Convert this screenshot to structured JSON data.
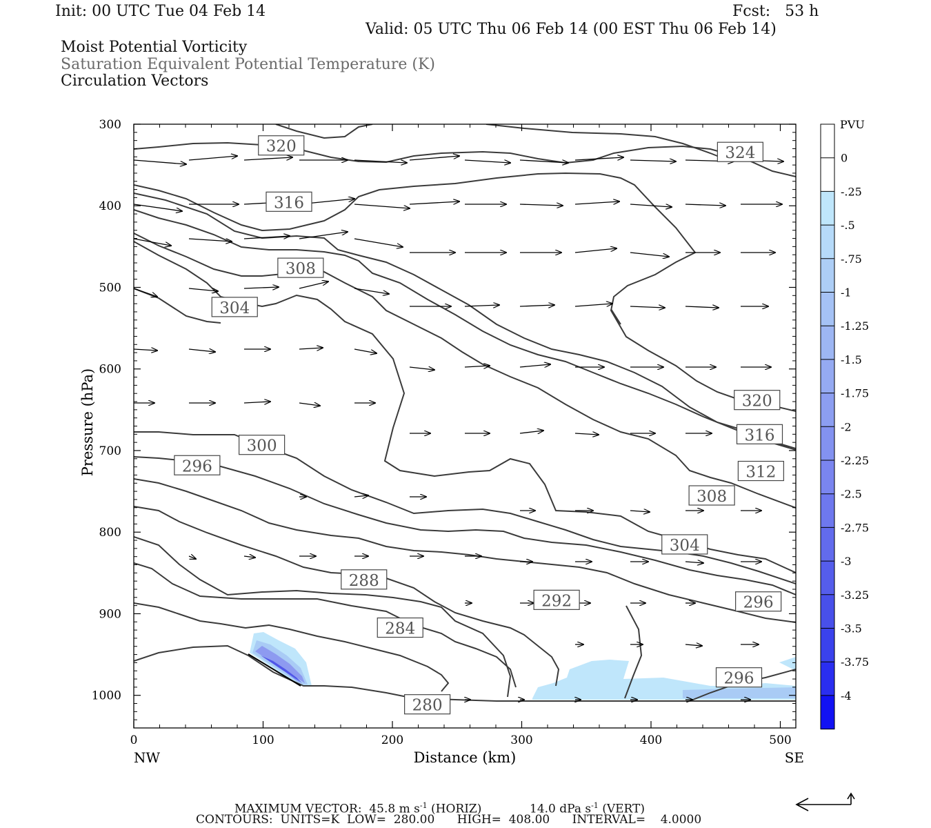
{
  "header": {
    "init": "Init: 00 UTC Tue 04 Feb 14",
    "fcst": "Fcst:   53 h",
    "valid": "Valid: 05 UTC Thu 06 Feb 14 (00 EST Thu 06 Feb 14)",
    "fields": [
      "Moist Potential Vorticity",
      "Saturation Equivalent Potential Temperature (K)",
      "Circulation Vectors"
    ]
  },
  "footer": {
    "max_vector_label": "MAXIMUM VECTOR:",
    "max_vector_horiz": "45.8 m s",
    "horiz_exp": "-1",
    "horiz_tag": " (HORIZ)",
    "max_vector_vert": "14.0 dPa s",
    "vert_exp": "-1",
    "vert_tag": " (VERT)",
    "contours": "CONTOURS:  UNITS=K  LOW=  280.00      HIGH=  408.00      INTERVAL=    4.0000"
  },
  "colors": {
    "contour": "#3a3a3a",
    "theta_label": "#555555",
    "mpv_light": "#bfe6fb",
    "mpv_dark": "#1010f0"
  },
  "chart_data": {
    "type": "contour-cross-section",
    "xlabel": "Distance (km)",
    "ylabel": "Pressure (hPa)",
    "x_ticks": [
      0,
      100,
      200,
      300,
      400,
      500
    ],
    "y_ticks": [
      300,
      400,
      500,
      600,
      700,
      800,
      900,
      1000
    ],
    "xlim": [
      0,
      512
    ],
    "ylim": [
      1040,
      300
    ],
    "x_end_labels": [
      "NW",
      "SE"
    ],
    "colorbar": {
      "unit": "PVU",
      "ticks": [
        "0",
        "-.25",
        "-.5",
        "-.75",
        "-1",
        "-1.25",
        "-1.5",
        "-1.75",
        "-2",
        "-2.25",
        "-2.5",
        "-2.75",
        "-3",
        "-3.25",
        "-3.5",
        "-3.75",
        "-4"
      ]
    },
    "contour_labels": [
      {
        "text": "320",
        "x": 114,
        "p": 326
      },
      {
        "text": "324",
        "x": 469,
        "p": 334
      },
      {
        "text": "316",
        "x": 120,
        "p": 395
      },
      {
        "text": "308",
        "x": 129,
        "p": 476
      },
      {
        "text": "304",
        "x": 78,
        "p": 524
      },
      {
        "text": "320",
        "x": 482,
        "p": 638
      },
      {
        "text": "316",
        "x": 484,
        "p": 680
      },
      {
        "text": "312",
        "x": 485,
        "p": 725
      },
      {
        "text": "308",
        "x": 447,
        "p": 755
      },
      {
        "text": "304",
        "x": 426,
        "p": 815
      },
      {
        "text": "300",
        "x": 99,
        "p": 693
      },
      {
        "text": "296",
        "x": 49,
        "p": 718
      },
      {
        "text": "288",
        "x": 178,
        "p": 858
      },
      {
        "text": "292",
        "x": 327,
        "p": 883
      },
      {
        "text": "296",
        "x": 483,
        "p": 885
      },
      {
        "text": "284",
        "x": 206,
        "p": 917
      },
      {
        "text": "296",
        "x": 468,
        "p": 978
      },
      {
        "text": "280",
        "x": 227,
        "p": 1011
      }
    ]
  }
}
